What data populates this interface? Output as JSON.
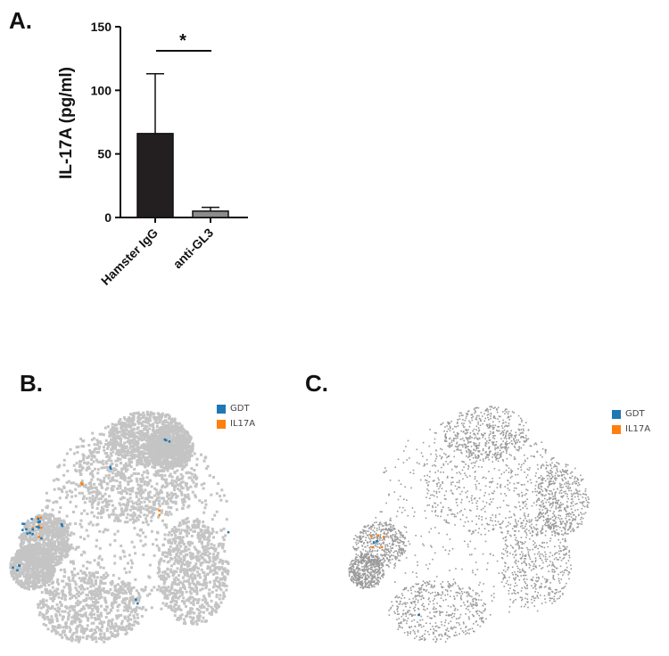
{
  "panels": {
    "a": {
      "letter": "A."
    },
    "b": {
      "letter": "B."
    },
    "c": {
      "letter": "C."
    }
  },
  "chart_data": [
    {
      "type": "bar",
      "categories": [
        "Hamster IgG",
        "anti-GL3"
      ],
      "values": [
        66,
        5
      ],
      "errors": [
        47,
        3
      ],
      "bar_colors": [
        "#231f20",
        "#8c8c8c"
      ],
      "ylabel": "IL-17A (pg/ml)",
      "ylim": [
        0,
        150
      ],
      "yticks": [
        0,
        50,
        100,
        150
      ],
      "significance": "*"
    }
  ],
  "tsne_plots": [
    {
      "panel": "B",
      "legend": [
        {
          "label": "GDT",
          "color": "#1f77b4"
        },
        {
          "label": "IL17A",
          "color": "#ff7f0e"
        }
      ],
      "background_color": "#c4c4c4"
    },
    {
      "panel": "C",
      "legend": [
        {
          "label": "GDT",
          "color": "#1f77b4"
        },
        {
          "label": "IL17A",
          "color": "#ff7f0e"
        }
      ],
      "background_color": "#9a9a9a"
    }
  ]
}
